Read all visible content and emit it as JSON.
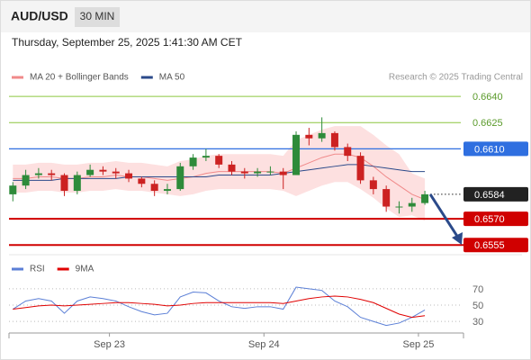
{
  "chart_data": [
    {
      "type": "candlestick",
      "title": "AUD/USD",
      "timeframe": "30 MIN",
      "subtitle": "Thursday, September 25, 2025 1:41:30 AM CET",
      "attribution": "Research © 2025 Trading Central",
      "xlim": [
        -0.3,
        35
      ],
      "ylim": [
        0.655,
        0.6646
      ],
      "up_color": "#2e8b3a",
      "down_color": "#cc2222",
      "open": [
        0.6584,
        0.6589,
        0.6595,
        0.6596,
        0.6595,
        0.6586,
        0.6595,
        0.6598,
        0.6597,
        0.6596,
        0.6593,
        0.659,
        0.6586,
        0.6587,
        0.66,
        0.6605,
        0.6606,
        0.6601,
        0.6597,
        0.6596,
        0.6597,
        0.6597,
        0.6595,
        0.6618,
        0.6616,
        0.6619,
        0.6611,
        0.6606,
        0.6592,
        0.6587,
        0.6577,
        0.6577,
        0.6579
      ],
      "high": [
        0.6591,
        0.6598,
        0.6599,
        0.6598,
        0.6596,
        0.6597,
        0.6601,
        0.66,
        0.6599,
        0.6598,
        0.6594,
        0.6592,
        0.659,
        0.6602,
        0.6607,
        0.661,
        0.6607,
        0.6603,
        0.6599,
        0.6599,
        0.66,
        0.6599,
        0.662,
        0.6622,
        0.6628,
        0.662,
        0.6613,
        0.6608,
        0.6594,
        0.6589,
        0.658,
        0.6582,
        0.6586
      ],
      "low": [
        0.658,
        0.6587,
        0.6593,
        0.6592,
        0.6583,
        0.6584,
        0.6594,
        0.6595,
        0.6593,
        0.6591,
        0.6588,
        0.6583,
        0.6584,
        0.6586,
        0.6598,
        0.6603,
        0.6599,
        0.6595,
        0.6593,
        0.6594,
        0.6595,
        0.6587,
        0.6595,
        0.6612,
        0.6614,
        0.6609,
        0.6603,
        0.659,
        0.6584,
        0.6574,
        0.6573,
        0.6574,
        0.6578
      ],
      "close": [
        0.6589,
        0.6595,
        0.6596,
        0.6595,
        0.6586,
        0.6595,
        0.6598,
        0.6597,
        0.6596,
        0.6593,
        0.659,
        0.6586,
        0.6587,
        0.66,
        0.6605,
        0.6606,
        0.6601,
        0.6597,
        0.6596,
        0.6597,
        0.6597,
        0.6595,
        0.6618,
        0.6616,
        0.6619,
        0.6611,
        0.6606,
        0.6592,
        0.6587,
        0.6577,
        0.6577,
        0.6579,
        0.6584
      ],
      "overlays": [
        {
          "name": "MA 20 + Bollinger Bands",
          "color": "#f08a8a",
          "band_color": "#fde0e0",
          "values": [
            0.6593,
            0.6593,
            0.6594,
            0.6594,
            0.6593,
            0.6593,
            0.6594,
            0.6594,
            0.6595,
            0.6594,
            0.6594,
            0.6593,
            0.6592,
            0.6593,
            0.6594,
            0.6596,
            0.6597,
            0.6597,
            0.6597,
            0.6597,
            0.6597,
            0.6596,
            0.6599,
            0.6602,
            0.6605,
            0.6607,
            0.6607,
            0.6605,
            0.66,
            0.6594,
            0.6589,
            0.6584,
            0.6581
          ],
          "upper": [
            0.6601,
            0.6601,
            0.6602,
            0.6602,
            0.6601,
            0.6601,
            0.6602,
            0.6602,
            0.6603,
            0.6602,
            0.6602,
            0.6601,
            0.66,
            0.6603,
            0.6604,
            0.6606,
            0.6607,
            0.6607,
            0.6607,
            0.6607,
            0.6607,
            0.6606,
            0.6615,
            0.6618,
            0.6621,
            0.6623,
            0.6623,
            0.6623,
            0.6618,
            0.6612,
            0.6607,
            0.6596,
            0.6593
          ],
          "lower": [
            0.6585,
            0.6585,
            0.6586,
            0.6586,
            0.6585,
            0.6585,
            0.6586,
            0.6586,
            0.6587,
            0.6586,
            0.6586,
            0.6585,
            0.6584,
            0.6583,
            0.6584,
            0.6586,
            0.6587,
            0.6587,
            0.6587,
            0.6587,
            0.6587,
            0.6586,
            0.6583,
            0.6586,
            0.6589,
            0.6591,
            0.6591,
            0.6587,
            0.6582,
            0.6576,
            0.6571,
            0.6572,
            0.6569
          ]
        },
        {
          "name": "MA 50",
          "color": "#2b4a8a",
          "values": [
            0.6592,
            0.6592,
            0.6592,
            0.6592,
            0.6593,
            0.6593,
            0.6593,
            0.6593,
            0.6593,
            0.6594,
            0.6594,
            0.6594,
            0.6594,
            0.6594,
            0.6594,
            0.6594,
            0.6595,
            0.6595,
            0.6595,
            0.6595,
            0.6595,
            0.6596,
            0.6597,
            0.6598,
            0.6599,
            0.66,
            0.6601,
            0.6601,
            0.66,
            0.6599,
            0.6598,
            0.6597,
            0.6597
          ]
        }
      ],
      "levels": [
        {
          "value": 0.664,
          "label": "0.6640",
          "color": "#8cc63f",
          "style": "plain"
        },
        {
          "value": 0.6625,
          "color": "#8cc63f",
          "style": "plain"
        },
        {
          "value": 0.661,
          "label": "0.6610",
          "color": "#2f6fe0",
          "style": "box"
        },
        {
          "value": 0.6584,
          "color": "#222222",
          "style": "dotted"
        },
        {
          "value": 0.657,
          "label": "0.6570",
          "color": "#d00000",
          "style": "box"
        },
        {
          "value": 0.6555,
          "color": "#d00000",
          "style": "box"
        }
      ]
    },
    {
      "type": "line",
      "xlim": [
        -0.3,
        35
      ],
      "ylim": [
        18,
        82
      ],
      "yticks": [
        30,
        50,
        70
      ],
      "grid": true,
      "xticks": [
        {
          "value": 7.5,
          "label": "Sep 23"
        },
        {
          "value": 19.5,
          "label": "Sep 24"
        },
        {
          "value": 31.5,
          "label": "Sep 25"
        }
      ],
      "series": [
        {
          "name": "RSI",
          "color": "#5b7fd6",
          "values": [
            45,
            55,
            58,
            55,
            40,
            55,
            60,
            58,
            55,
            48,
            42,
            38,
            40,
            60,
            66,
            65,
            55,
            48,
            46,
            48,
            48,
            45,
            72,
            70,
            68,
            55,
            48,
            35,
            30,
            25,
            28,
            35,
            44
          ]
        },
        {
          "name": "9MA",
          "color": "#e00000",
          "values": [
            45,
            47,
            49,
            50,
            49,
            50,
            51,
            52,
            53,
            53,
            52,
            51,
            49,
            50,
            52,
            53,
            53,
            53,
            53,
            53,
            53,
            52,
            55,
            58,
            60,
            61,
            60,
            57,
            53,
            46,
            39,
            35,
            37
          ]
        }
      ]
    }
  ]
}
